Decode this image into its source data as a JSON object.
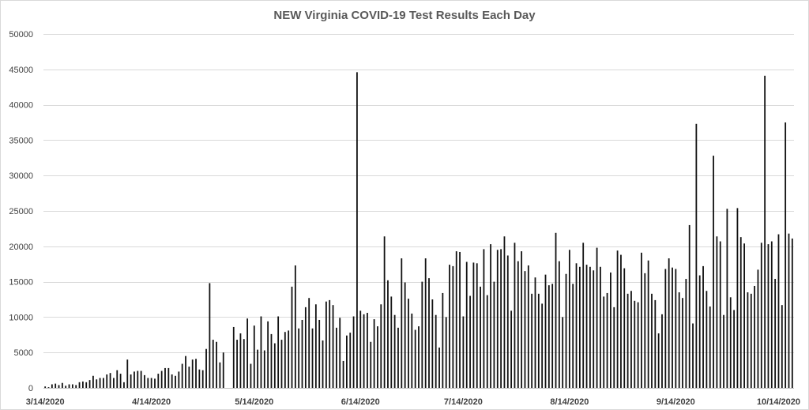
{
  "chart_data": {
    "type": "bar",
    "title": "NEW Virginia COVID-19 Test Results Each Day",
    "xlabel": "",
    "ylabel": "",
    "start_date": "2020-03-14",
    "ylim": [
      0,
      50000
    ],
    "yticks": [
      0,
      5000,
      10000,
      15000,
      20000,
      25000,
      30000,
      35000,
      40000,
      45000,
      50000
    ],
    "ytick_labels": [
      "0",
      "5000",
      "10000",
      "15000",
      "20000",
      "25000",
      "30000",
      "35000",
      "40000",
      "45000",
      "50000"
    ],
    "xtick_labels": [
      "3/14/2020",
      "4/14/2020",
      "5/14/2020",
      "6/14/2020",
      "7/14/2020",
      "8/14/2020",
      "9/14/2020",
      "10/14/2020"
    ],
    "grid": true,
    "legend": "none",
    "colors": {
      "bar": "#111111",
      "grid": "#d9d9d9",
      "axis": "#bfbfbf",
      "title": "#595959"
    },
    "values": [
      200,
      100,
      500,
      600,
      400,
      700,
      300,
      500,
      500,
      400,
      800,
      900,
      800,
      1100,
      1700,
      1200,
      1400,
      1400,
      1900,
      2100,
      1400,
      2500,
      2000,
      800,
      4000,
      1900,
      2300,
      2400,
      2400,
      1800,
      1400,
      1400,
      1300,
      2000,
      2400,
      2800,
      2800,
      1900,
      1700,
      2300,
      3400,
      4500,
      3000,
      4000,
      4100,
      2600,
      2500,
      5500,
      14800,
      6800,
      6500,
      3600,
      5000,
      null,
      null,
      8600,
      6800,
      7700,
      6900,
      9800,
      3400,
      8800,
      5400,
      10100,
      5300,
      9400,
      7600,
      6300,
      10100,
      6800,
      7900,
      8100,
      14300,
      17300,
      8400,
      9600,
      11400,
      12700,
      8400,
      11800,
      9600,
      6700,
      12200,
      12400,
      11700,
      8500,
      9900,
      3800,
      7400,
      7800,
      10100,
      44600,
      10900,
      10400,
      10600,
      6500,
      9700,
      8700,
      11800,
      21400,
      15200,
      12900,
      10300,
      8500,
      18300,
      14900,
      12600,
      10500,
      8200,
      8700,
      15000,
      18300,
      15500,
      12500,
      10300,
      5700,
      13400,
      10000,
      17400,
      17200,
      19300,
      19200,
      10100,
      17800,
      13000,
      17700,
      17600,
      14300,
      19600,
      13100,
      20300,
      15000,
      19500,
      19600,
      21400,
      18700,
      10900,
      20500,
      17900,
      19300,
      16500,
      17300,
      13300,
      15600,
      13300,
      11900,
      16000,
      14500,
      14700,
      21900,
      17900,
      10000,
      16100,
      19500,
      14700,
      17600,
      17100,
      20500,
      17400,
      17100,
      16600,
      19800,
      17100,
      12900,
      13400,
      16300,
      11400,
      19400,
      18800,
      16900,
      13300,
      13700,
      12300,
      12100,
      19100,
      16200,
      18000,
      13300,
      12400,
      7700,
      10400,
      16800,
      18300,
      17000,
      16800,
      13500,
      12700,
      15400,
      23000,
      9100,
      37300,
      15900,
      17200,
      13700,
      11500,
      32800,
      21400,
      20700,
      10300,
      25300,
      12800,
      11000,
      25400,
      21300,
      20400,
      13500,
      13300,
      14400,
      16700,
      20500,
      44100,
      20300,
      20700,
      15400,
      21700,
      11700,
      37500,
      21800,
      21100
    ]
  }
}
